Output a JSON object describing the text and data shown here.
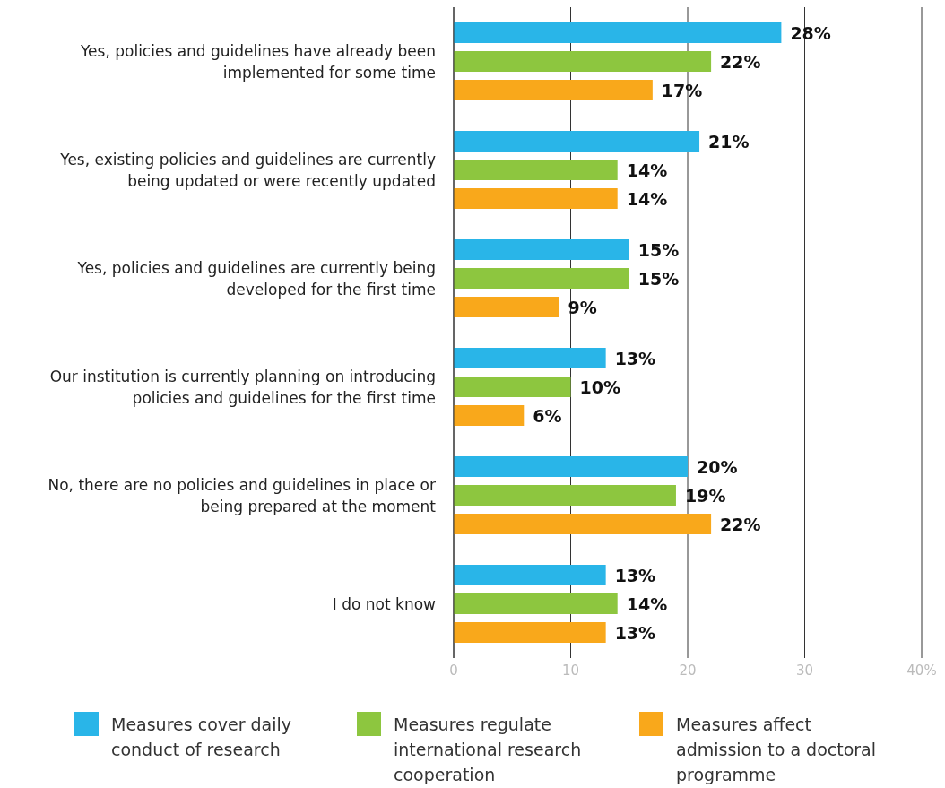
{
  "chart_data": {
    "type": "bar",
    "orientation": "horizontal",
    "categories": [
      "Yes, policies and guidelines have already been implemented for some time",
      "Yes, existing policies and guidelines are currently being updated or were recently updated",
      "Yes, policies and guidelines are currently being developed for the first time",
      "Our institution is currently planning on introducing policies and guidelines for the first time",
      "No, there are no policies and guidelines in place or being prepared at the moment",
      "I do not know"
    ],
    "series": [
      {
        "name": "Measures cover daily conduct of research",
        "color": "#29b5e8",
        "values": [
          28,
          21,
          15,
          13,
          20,
          13
        ],
        "value_labels": [
          "28%",
          "21%",
          "15%",
          "13%",
          "20%",
          "13%"
        ]
      },
      {
        "name": "Measures regulate international research cooperation",
        "color": "#8dc63f",
        "values": [
          22,
          14,
          15,
          10,
          19,
          14
        ],
        "value_labels": [
          "22%",
          "14%",
          "15%",
          "10%",
          "19%",
          "14%"
        ]
      },
      {
        "name": "Measures affect admission to a doctoral programme",
        "color": "#f9a81b",
        "values": [
          17,
          14,
          9,
          6,
          22,
          13
        ],
        "value_labels": [
          "17%",
          "14%",
          "9%",
          "6%",
          "22%",
          "13%"
        ]
      }
    ],
    "xlim": [
      0,
      40
    ],
    "xticks": [
      0,
      10,
      20,
      30,
      {
        "value": 40,
        "label": "40%"
      }
    ],
    "grid": "x",
    "legend": "bottom"
  }
}
